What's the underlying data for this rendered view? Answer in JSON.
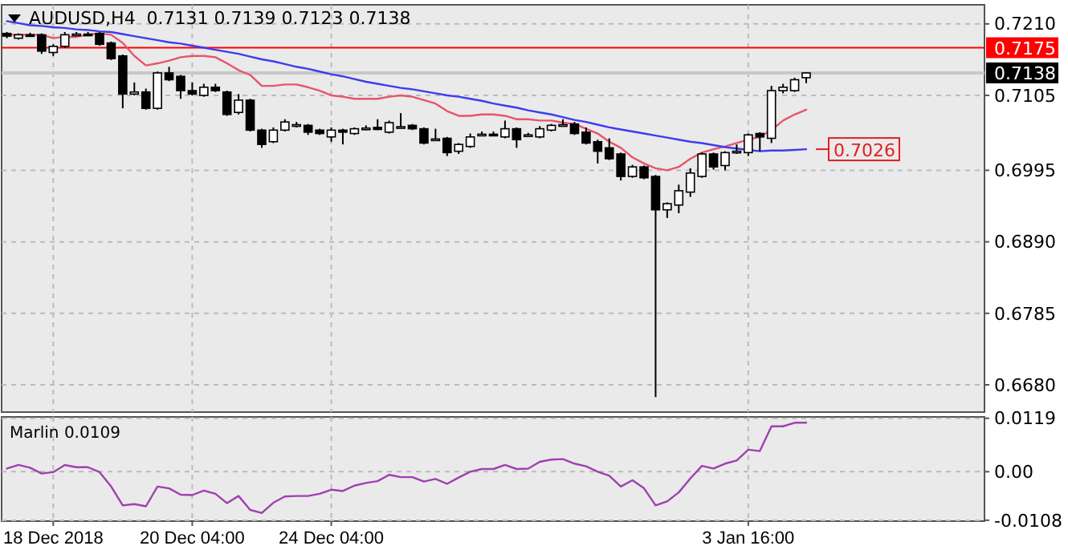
{
  "chart_data": [
    {
      "type": "candlestick",
      "title": "AUDUSD,H4  0.7131 0.7139 0.7123 0.7138",
      "categories": [
        null,
        null,
        null,
        null,
        null,
        null,
        null,
        null,
        null,
        null,
        null,
        null,
        null,
        null,
        null,
        null,
        null,
        null,
        null,
        null,
        null,
        null,
        null,
        null,
        null,
        null,
        null,
        null,
        null,
        null,
        null,
        null,
        null,
        null,
        null,
        null,
        null,
        null,
        null,
        null,
        null,
        null,
        null,
        null,
        null,
        null,
        null,
        null,
        null,
        null,
        null,
        null,
        null,
        null,
        null,
        null,
        null,
        null,
        null,
        null,
        null,
        null,
        null,
        null,
        null,
        null,
        null,
        null,
        null,
        null
      ],
      "ohlc": [
        [
          0.7196,
          0.7198,
          0.7189,
          0.7192
        ],
        [
          0.7189,
          0.7196,
          0.7187,
          0.7194
        ],
        [
          0.7194,
          0.7197,
          0.7191,
          0.7192
        ],
        [
          0.7194,
          0.7196,
          0.7166,
          0.717
        ],
        [
          0.7168,
          0.718,
          0.7163,
          0.7177
        ],
        [
          0.7177,
          0.7198,
          0.7175,
          0.7194
        ],
        [
          0.7194,
          0.7198,
          0.7192,
          0.7195
        ],
        [
          0.7195,
          0.7198,
          0.7192,
          0.7194
        ],
        [
          0.7196,
          0.7198,
          0.7178,
          0.718
        ],
        [
          0.7182,
          0.7184,
          0.7157,
          0.7159
        ],
        [
          0.7163,
          0.7165,
          0.7086,
          0.7107
        ],
        [
          0.7107,
          0.7124,
          0.7105,
          0.711
        ],
        [
          0.711,
          0.7115,
          0.7084,
          0.7086
        ],
        [
          0.7086,
          0.714,
          0.7084,
          0.7138
        ],
        [
          0.7138,
          0.7147,
          0.7126,
          0.7128
        ],
        [
          0.7133,
          0.7135,
          0.71,
          0.7112
        ],
        [
          0.7112,
          0.7124,
          0.7105,
          0.7107
        ],
        [
          0.7105,
          0.7122,
          0.7103,
          0.7117
        ],
        [
          0.7117,
          0.7122,
          0.711,
          0.7112
        ],
        [
          0.711,
          0.7112,
          0.7075,
          0.7077
        ],
        [
          0.708,
          0.7107,
          0.7077,
          0.7098
        ],
        [
          0.7098,
          0.71,
          0.7052,
          0.7054
        ],
        [
          0.7054,
          0.7056,
          0.7028,
          0.7033
        ],
        [
          0.7037,
          0.7058,
          0.7035,
          0.7054
        ],
        [
          0.7054,
          0.707,
          0.7052,
          0.7066
        ],
        [
          0.7061,
          0.7066,
          0.7058,
          0.7062
        ],
        [
          0.7061,
          0.7063,
          0.7047,
          0.7051
        ],
        [
          0.7054,
          0.7056,
          0.7047,
          0.7049
        ],
        [
          0.7044,
          0.7058,
          0.7037,
          0.7054
        ],
        [
          0.7054,
          0.7056,
          0.7033,
          0.7051
        ],
        [
          0.7049,
          0.7058,
          0.7047,
          0.7056
        ],
        [
          0.7056,
          0.7061,
          0.7054,
          0.7057
        ],
        [
          0.7058,
          0.707,
          0.7054,
          0.7055
        ],
        [
          0.7051,
          0.7068,
          0.7049,
          0.7065
        ],
        [
          0.7058,
          0.7079,
          0.7057,
          0.7059
        ],
        [
          0.7061,
          0.7063,
          0.7054,
          0.7056
        ],
        [
          0.7056,
          0.7058,
          0.7033,
          0.7035
        ],
        [
          0.704,
          0.7056,
          0.7039,
          0.7041
        ],
        [
          0.7042,
          0.7044,
          0.7016,
          0.7021
        ],
        [
          0.7023,
          0.7035,
          0.7019,
          0.7033
        ],
        [
          0.703,
          0.7049,
          0.7028,
          0.7044
        ],
        [
          0.7047,
          0.7052,
          0.7045,
          0.7048
        ],
        [
          0.7048,
          0.7052,
          0.7045,
          0.7047
        ],
        [
          0.7044,
          0.7068,
          0.7042,
          0.7056
        ],
        [
          0.7056,
          0.7058,
          0.7028,
          0.704
        ],
        [
          0.7045,
          0.705,
          0.7044,
          0.7047
        ],
        [
          0.7044,
          0.706,
          0.7042,
          0.7056
        ],
        [
          0.7054,
          0.7063,
          0.7052,
          0.7061
        ],
        [
          0.7061,
          0.707,
          0.7059,
          0.7062
        ],
        [
          0.7063,
          0.7066,
          0.7047,
          0.7049
        ],
        [
          0.7051,
          0.7058,
          0.7033,
          0.7035
        ],
        [
          0.7037,
          0.704,
          0.7005,
          0.7023
        ],
        [
          0.7028,
          0.7042,
          0.701,
          0.7012
        ],
        [
          0.7019,
          0.7021,
          0.698,
          0.6986
        ],
        [
          0.6986,
          0.7003,
          0.6984,
          0.7
        ],
        [
          0.7,
          0.7002,
          0.6982,
          0.6984
        ],
        [
          0.6986,
          0.6988,
          0.6662,
          0.6937
        ],
        [
          0.6937,
          0.6948,
          0.6925,
          0.6946
        ],
        [
          0.6944,
          0.6974,
          0.6932,
          0.6965
        ],
        [
          0.6963,
          0.6998,
          0.6956,
          0.6991
        ],
        [
          0.6986,
          0.7021,
          0.6984,
          0.7019
        ],
        [
          0.7019,
          0.7021,
          0.6996,
          0.7
        ],
        [
          0.7002,
          0.7023,
          0.6995,
          0.7021
        ],
        [
          0.7021,
          0.7033,
          0.7019,
          0.7023
        ],
        [
          0.7021,
          0.7049,
          0.7016,
          0.7047
        ],
        [
          0.7049,
          0.7051,
          0.7023,
          0.7044
        ],
        [
          0.7042,
          0.7119,
          0.7035,
          0.7112
        ],
        [
          0.7112,
          0.7122,
          0.7108,
          0.7117
        ],
        [
          0.7112,
          0.7131,
          0.711,
          0.7128
        ],
        [
          0.7131,
          0.7139,
          0.7123,
          0.7138
        ]
      ],
      "series": [
        {
          "type": "line",
          "color": "#e8546a",
          "values": [
            0.7194,
            0.7194,
            0.7194,
            0.7194,
            0.7189,
            0.7191,
            0.7191,
            0.7194,
            0.7196,
            0.7194,
            0.7182,
            0.7163,
            0.7149,
            0.7152,
            0.7156,
            0.7161,
            0.7163,
            0.7163,
            0.7161,
            0.7152,
            0.7142,
            0.7135,
            0.7119,
            0.7119,
            0.7121,
            0.7121,
            0.7117,
            0.7112,
            0.7105,
            0.7103,
            0.71,
            0.71,
            0.71,
            0.7103,
            0.7105,
            0.7103,
            0.7098,
            0.7093,
            0.7082,
            0.7075,
            0.7075,
            0.7077,
            0.7077,
            0.7075,
            0.707,
            0.707,
            0.7068,
            0.7068,
            0.7065,
            0.7063,
            0.7056,
            0.7049,
            0.7037,
            0.7028,
            0.7014,
            0.7005,
            0.6998,
            0.6995,
            0.7,
            0.7012,
            0.7021,
            0.7026,
            0.703,
            0.7035,
            0.704,
            0.7044,
            0.7054,
            0.7068,
            0.7077,
            0.7084
          ]
        },
        {
          "type": "line",
          "color": "#3c3cf0",
          "values": [
            0.7214,
            0.7211,
            0.7208,
            0.7207,
            0.7205,
            0.7204,
            0.7202,
            0.7201,
            0.7199,
            0.7198,
            0.7195,
            0.7192,
            0.7189,
            0.7186,
            0.7183,
            0.7181,
            0.7178,
            0.7175,
            0.7172,
            0.7169,
            0.7166,
            0.7162,
            0.7158,
            0.7155,
            0.7151,
            0.7147,
            0.7144,
            0.714,
            0.7136,
            0.7133,
            0.7129,
            0.7125,
            0.7122,
            0.7119,
            0.7116,
            0.7114,
            0.7111,
            0.7108,
            0.7105,
            0.7103,
            0.71,
            0.7097,
            0.7093,
            0.709,
            0.7087,
            0.7083,
            0.708,
            0.7077,
            0.7073,
            0.7069,
            0.7066,
            0.7062,
            0.7058,
            0.7055,
            0.7052,
            0.7049,
            0.7046,
            0.7043,
            0.704,
            0.7037,
            0.7035,
            0.7032,
            0.7029,
            0.7027,
            0.7025,
            0.7023,
            0.7024,
            0.7024,
            0.7025,
            0.7026
          ]
        }
      ],
      "ylim": [
        0.664,
        0.7238
      ],
      "yticks": [
        {
          "value": 0.721,
          "label": "0.7210"
        },
        0.7105,
        0.6995,
        {
          "value": 0.689,
          "label": "0.6890"
        },
        0.6785,
        {
          "value": 0.668,
          "label": "0.6680"
        }
      ],
      "ref_lines": [
        {
          "axis": "y",
          "value": 0.7175,
          "label": "0.7175",
          "color": "#ff0000"
        },
        {
          "axis": "y",
          "value": 0.7138,
          "label": "0.7138",
          "color": "#c8c8c8"
        }
      ],
      "annotations": [
        "0.7026"
      ],
      "grid": true,
      "tick_labels": "y"
    },
    {
      "type": "line",
      "title": "Marlin 0.0109",
      "categories": [
        null,
        null,
        null,
        null,
        "18 Dec 2018",
        null,
        null,
        null,
        null,
        null,
        null,
        null,
        null,
        null,
        null,
        null,
        "20 Dec 04:00",
        null,
        null,
        null,
        null,
        null,
        null,
        null,
        null,
        null,
        null,
        null,
        "24 Dec 04:00",
        null,
        null,
        null,
        null,
        null,
        null,
        null,
        null,
        null,
        null,
        null,
        null,
        null,
        null,
        null,
        null,
        null,
        null,
        null,
        null,
        null,
        null,
        null,
        null,
        null,
        null,
        null,
        null,
        null,
        null,
        null,
        null,
        null,
        null,
        null,
        "3 Jan 16:00",
        null,
        null,
        null,
        null,
        null
      ],
      "series": [
        {
          "color": "#a040b0",
          "values": [
            0.0007,
            0.0015,
            0.0009,
            -0.0004,
            -0.0001,
            0.0015,
            0.001,
            0.001,
            -0.0001,
            -0.0033,
            -0.0075,
            -0.0072,
            -0.0077,
            -0.0033,
            -0.0037,
            -0.0051,
            -0.0052,
            -0.0042,
            -0.0049,
            -0.007,
            -0.0054,
            -0.0085,
            -0.0092,
            -0.0069,
            -0.0055,
            -0.0054,
            -0.0054,
            -0.0049,
            -0.004,
            -0.0043,
            -0.0031,
            -0.0025,
            -0.0021,
            -0.0007,
            -0.0012,
            -0.0012,
            -0.0022,
            -0.0016,
            -0.0027,
            -0.0013,
            0,
            0.0006,
            0.0006,
            0.0015,
            0.0006,
            0.0007,
            0.0022,
            0.0027,
            0.0028,
            0.0018,
            0.0012,
            0,
            -0.0009,
            -0.0033,
            -0.0019,
            -0.0037,
            -0.0075,
            -0.0066,
            -0.0046,
            -0.0015,
            0.0013,
            0.0007,
            0.0018,
            0.0025,
            0.0049,
            0.0046,
            0.0101,
            0.0101,
            0.0109,
            0.0109
          ]
        }
      ],
      "ylim": [
        -0.011,
        0.0122
      ],
      "yticks": [
        0.0119,
        {
          "value": 0,
          "label": "0.00"
        },
        -0.0108
      ],
      "grid": true
    }
  ]
}
